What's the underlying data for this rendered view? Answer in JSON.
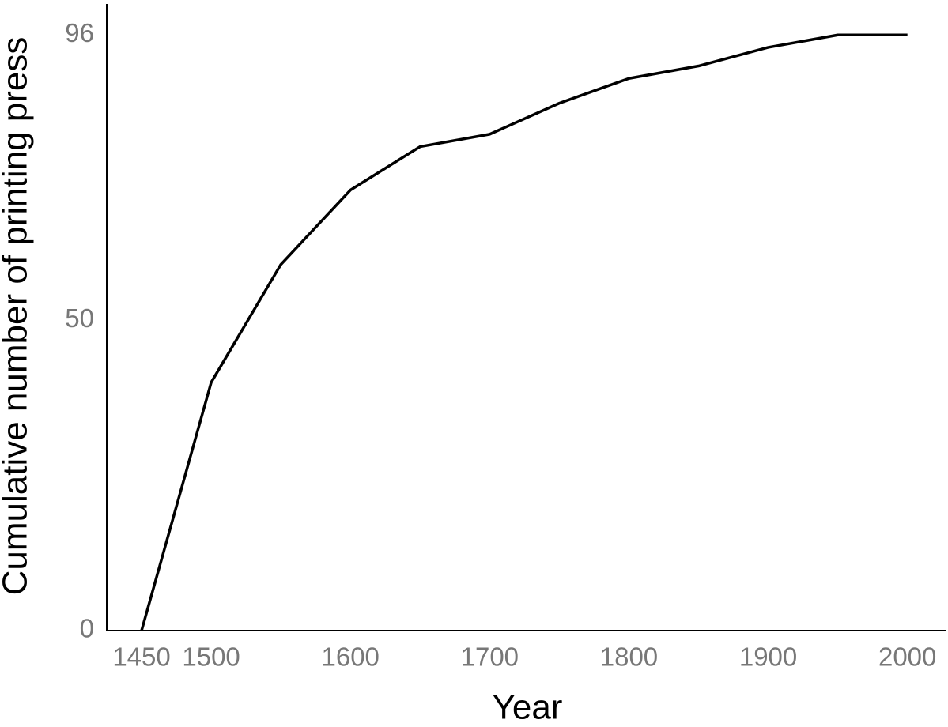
{
  "chart_data": {
    "type": "line",
    "x_label": "Year",
    "y_label": "Cumulative number of printing press",
    "x": [
      1450,
      1500,
      1550,
      1600,
      1650,
      1700,
      1750,
      1800,
      1850,
      1900,
      1950,
      2000
    ],
    "series": [
      {
        "name": "Cumulative number of printing press",
        "color": "#000000",
        "values": [
          0,
          40,
          59,
          71,
          78,
          80,
          85,
          89,
          91,
          94,
          96,
          96
        ]
      }
    ],
    "xlim": [
      1425,
      2028
    ],
    "ylim": [
      0,
      101
    ],
    "xticks": [
      1450,
      1500,
      1600,
      1700,
      1800,
      1900,
      2000
    ],
    "yticks": [
      0,
      50,
      96
    ],
    "grid": false
  }
}
